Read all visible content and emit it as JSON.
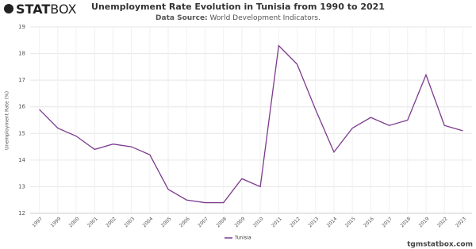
{
  "brand": {
    "bold": "STAT",
    "light": "BOX"
  },
  "footer": "tgmstatbox.com",
  "chart_data": {
    "type": "line",
    "title": "Unemployment Rate Evolution in Tunisia from 1990 to 2021",
    "subtitle": {
      "label": "Data Source:",
      "text": "World Development Indicators."
    },
    "y_label": "Unemployment Rate (%)",
    "categories": [
      "1997",
      "1999",
      "2000",
      "2001",
      "2002",
      "2003",
      "2004",
      "2005",
      "2006",
      "2007",
      "2008",
      "2009",
      "2010",
      "2011",
      "2012",
      "2013",
      "2014",
      "2015",
      "2016",
      "2017",
      "2018",
      "2019",
      "2022",
      "2023"
    ],
    "series": [
      {
        "name": "Tunisia",
        "color": "#7b3a8d",
        "values": [
          15.9,
          15.2,
          14.9,
          14.4,
          14.6,
          14.5,
          14.2,
          12.9,
          12.5,
          12.4,
          12.4,
          13.3,
          13.0,
          18.3,
          17.6,
          15.9,
          14.3,
          15.2,
          15.6,
          15.3,
          15.5,
          17.2,
          15.3,
          15.1
        ]
      }
    ],
    "ylim": [
      12,
      19
    ],
    "yticks": [
      12,
      13,
      14,
      15,
      16,
      17,
      18,
      19
    ],
    "grid": true,
    "legend": "bottom"
  }
}
